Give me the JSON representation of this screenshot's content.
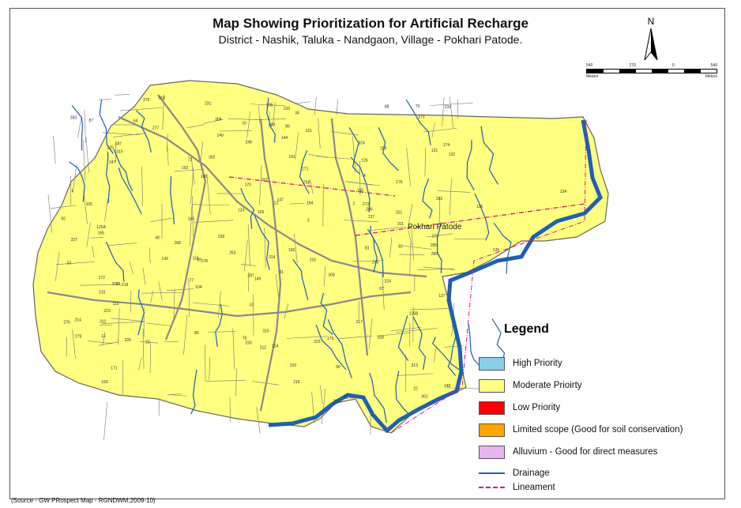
{
  "title": "Map Showing Prioritization for Artificial Recharge",
  "subtitle": "District -  Nashik, Taluka - Nandgaon, Village - Pokhari Patode.",
  "north": "N",
  "scale": {
    "ticks": [
      "540",
      "270",
      "0",
      "540"
    ],
    "unit": "Meters"
  },
  "village_label": "Pokhari Patode",
  "legend": {
    "title": "Legend",
    "items": [
      {
        "label": "High Priority",
        "color": "#87ceeb"
      },
      {
        "label": "Moderate Prioirty",
        "color": "#ffff80"
      },
      {
        "label": "Low Priority",
        "color": "#ff0000"
      },
      {
        "label": "Limited scope (Good for soil conservation)",
        "color": "#ffa500"
      },
      {
        "label": "Alluvium - Good for direct measures",
        "color": "#e8b4f0"
      }
    ],
    "lines": [
      {
        "label": "Drainage",
        "color": "#1f5fb4",
        "style": "solid"
      },
      {
        "label": "Lineament",
        "color": "#e0157a",
        "style": "dashdot"
      }
    ]
  },
  "plot_numbers": [
    "104",
    "105",
    "113",
    "116",
    "124",
    "125",
    "125A",
    "125B",
    "126",
    "127",
    "131",
    "132",
    "133",
    "134",
    "135",
    "136",
    "137",
    "140",
    "143",
    "144",
    "145",
    "146",
    "147",
    "148",
    "149",
    "155",
    "160",
    "165",
    "166",
    "167",
    "170",
    "171",
    "172",
    "173",
    "174",
    "175",
    "176",
    "178",
    "181",
    "183",
    "184",
    "187",
    "192",
    "193",
    "201",
    "205",
    "206",
    "210",
    "212",
    "214",
    "215",
    "216",
    "218",
    "221",
    "223",
    "224",
    "226",
    "228",
    "231",
    "233",
    "240",
    "247",
    "248",
    "258",
    "263",
    "268",
    "270",
    "271",
    "272",
    "273",
    "276",
    "277",
    "279",
    "282",
    "283",
    "285",
    "286",
    "287",
    "289",
    "290",
    "301",
    "302",
    "304",
    "308",
    "310",
    "311",
    "312",
    "313",
    "314",
    "315",
    "316",
    "317",
    "318",
    "319",
    "321",
    "323",
    "324",
    "326",
    "327",
    "328",
    "1",
    "2",
    "3",
    "4",
    "11",
    "12",
    "15",
    "16",
    "22",
    "23",
    "25",
    "33",
    "34",
    "37",
    "40",
    "64",
    "67",
    "70",
    "72",
    "76",
    "77",
    "80",
    "81",
    "82",
    "86",
    "87",
    "88",
    "89",
    "90",
    "91",
    "92"
  ],
  "source": "(Source - GW PRospect Map - RGNDWM,2009-10)"
}
